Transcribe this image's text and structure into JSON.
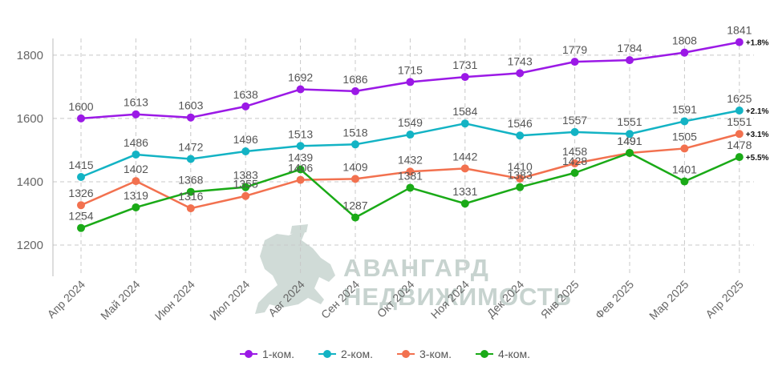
{
  "brand": {
    "line1": "АВАНГАРД",
    "line2": "НЕДВИЖИМОСТЬ"
  },
  "chart_data": {
    "type": "line",
    "categories": [
      "Апр 2024",
      "Май 2024",
      "Июн 2024",
      "Июл 2024",
      "Авг 2024",
      "Сен 2024",
      "Окт 2024",
      "Ноя 2024",
      "Дек 2024",
      "Янв 2025",
      "Фев 2025",
      "Мар 2025",
      "Апр 2025"
    ],
    "ylim": [
      1100,
      1900
    ],
    "yticks": [
      1200,
      1400,
      1600,
      1800
    ],
    "grid": true,
    "legend_position": "bottom",
    "series": [
      {
        "name": "1-ком.",
        "color": "#9b19e6",
        "values": [
          1600,
          1613,
          1603,
          1638,
          1692,
          1686,
          1715,
          1731,
          1743,
          1779,
          1784,
          1808,
          1841
        ],
        "change_label": "+1.8%"
      },
      {
        "name": "2-ком.",
        "color": "#13b3c4",
        "values": [
          1415,
          1486,
          1472,
          1496,
          1513,
          1518,
          1549,
          1584,
          1546,
          1557,
          1551,
          1591,
          1625
        ],
        "change_label": "+2.1%"
      },
      {
        "name": "3-ком.",
        "color": "#f2714f",
        "values": [
          1326,
          1402,
          1316,
          1355,
          1406,
          1409,
          1432,
          1442,
          1410,
          1458,
          1491,
          1505,
          1551
        ],
        "change_label": "+3.1%"
      },
      {
        "name": "4-ком.",
        "color": "#1aaa17",
        "values": [
          1254,
          1319,
          1368,
          1383,
          1439,
          1287,
          1381,
          1331,
          1383,
          1428,
          1491,
          1401,
          1478
        ],
        "change_label": "+5.5%"
      }
    ]
  }
}
